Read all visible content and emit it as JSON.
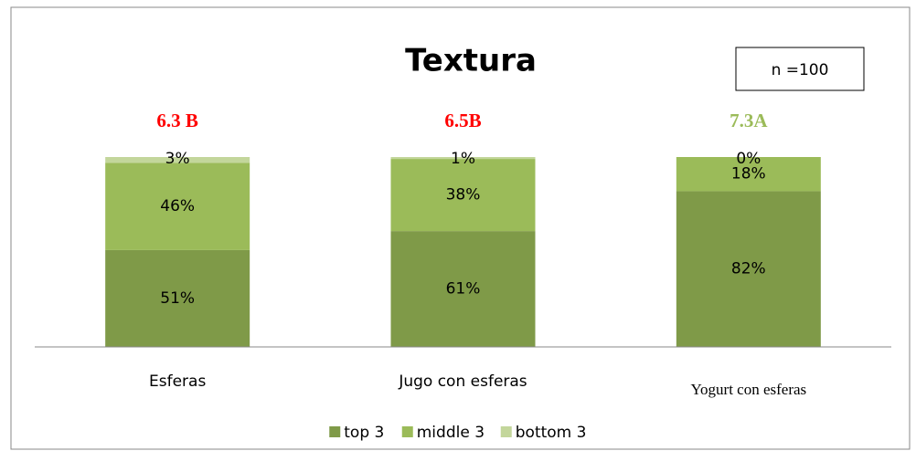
{
  "chart_data": {
    "type": "stacked_bar",
    "title": "Textura",
    "note": "n =100",
    "categories": [
      "Esferas",
      "Jugo con esferas",
      "Yogurt con esferas"
    ],
    "series": [
      {
        "name": "top 3",
        "color": "#7f9a48",
        "values": [
          51,
          61,
          82
        ],
        "value_labels": [
          "51%",
          "61%",
          "82%"
        ]
      },
      {
        "name": "middle 3",
        "color": "#9bbb59",
        "values": [
          46,
          38,
          18
        ],
        "value_labels": [
          "46%",
          "38%",
          "18%"
        ]
      },
      {
        "name": "bottom 3",
        "color": "#c3d69b",
        "values": [
          3,
          1,
          0
        ],
        "value_labels": [
          "3%",
          "1%",
          "0%"
        ]
      }
    ],
    "annotations": [
      {
        "text": "6.3 B",
        "color": "#ff0000"
      },
      {
        "text": "6.5B",
        "color": "#ff0000"
      },
      {
        "text": "7.3A",
        "color": "#9bbb59"
      }
    ],
    "ylim": [
      0,
      100
    ],
    "legend": "bottom"
  }
}
